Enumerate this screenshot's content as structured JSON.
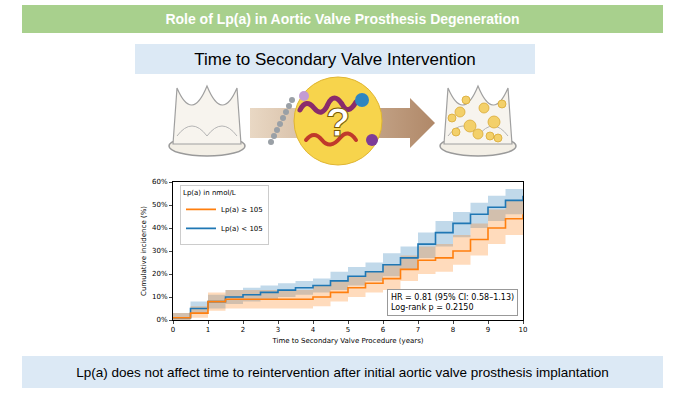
{
  "header": {
    "title": "Role of Lp(a) in Aortic Valve Prosthesis Degeneration"
  },
  "subheader": "Time to Secondary Valve Intervention",
  "illustration": {
    "molecule_label": "?"
  },
  "chart_data": {
    "type": "step",
    "xlabel": "Time to Secondary Valve Procedure (years)",
    "ylabel": "Cumulative incidence (%)",
    "legend_title": "Lp(a) in nmol/L",
    "legend": "upper left",
    "grid": false,
    "x": [
      0,
      0.5,
      1,
      1.5,
      2,
      2.5,
      3,
      3.5,
      4,
      4.5,
      5,
      5.5,
      6,
      6.5,
      7,
      7.5,
      8,
      8.5,
      9,
      9.5,
      10
    ],
    "series": [
      {
        "name": "Lp(a) < 105",
        "color": "#1f77b4",
        "values": [
          1,
          5,
          8,
          10,
          11,
          12,
          13,
          14,
          15,
          17,
          19,
          21,
          24,
          27,
          33,
          38,
          42,
          46,
          49,
          52,
          54
        ],
        "lower": [
          0,
          3,
          5,
          7,
          8,
          9,
          10,
          11,
          12,
          13,
          15,
          17,
          19,
          22,
          27,
          32,
          36,
          40,
          43,
          46,
          48
        ],
        "upper": [
          3,
          8,
          11,
          13,
          14,
          15,
          16,
          17,
          18,
          21,
          23,
          25,
          29,
          32,
          38,
          43,
          47,
          51,
          54,
          57,
          59
        ]
      },
      {
        "name": "Lp(a) ≥ 105",
        "color": "#ff7f0e",
        "values": [
          1,
          3,
          8,
          9,
          9,
          9,
          9,
          9,
          10,
          12,
          14,
          16,
          18,
          22,
          26,
          27,
          30,
          35,
          40,
          44,
          46
        ],
        "lower": [
          0,
          1,
          4,
          5,
          5,
          5,
          5,
          5,
          6,
          8,
          10,
          12,
          13,
          17,
          20,
          21,
          24,
          28,
          33,
          37,
          39
        ],
        "upper": [
          3,
          6,
          12,
          13,
          13,
          13,
          13,
          13,
          15,
          17,
          19,
          21,
          24,
          28,
          32,
          33,
          37,
          42,
          48,
          52,
          54
        ]
      }
    ],
    "xlim": [
      0,
      10
    ],
    "xticks": [
      0,
      1,
      2,
      3,
      4,
      5,
      6,
      7,
      8,
      9,
      10
    ],
    "ylim": [
      0,
      60
    ],
    "yticks": [
      {
        "value": 0,
        "label": "0%"
      },
      {
        "value": 10,
        "label": "10%"
      },
      {
        "value": 20,
        "label": "20%"
      },
      {
        "value": 30,
        "label": "30%"
      },
      {
        "value": 40,
        "label": "40%"
      },
      {
        "value": 50,
        "label": "50%"
      },
      {
        "value": 60,
        "label": "60%"
      }
    ],
    "annotation": [
      "HR = 0.81 (95% CI: 0.58–1.13)",
      "Log-rank p = 0.2150"
    ]
  },
  "footer": "Lp(a) does not affect time to reintervention after initial aortic valve prosthesis implantation"
}
